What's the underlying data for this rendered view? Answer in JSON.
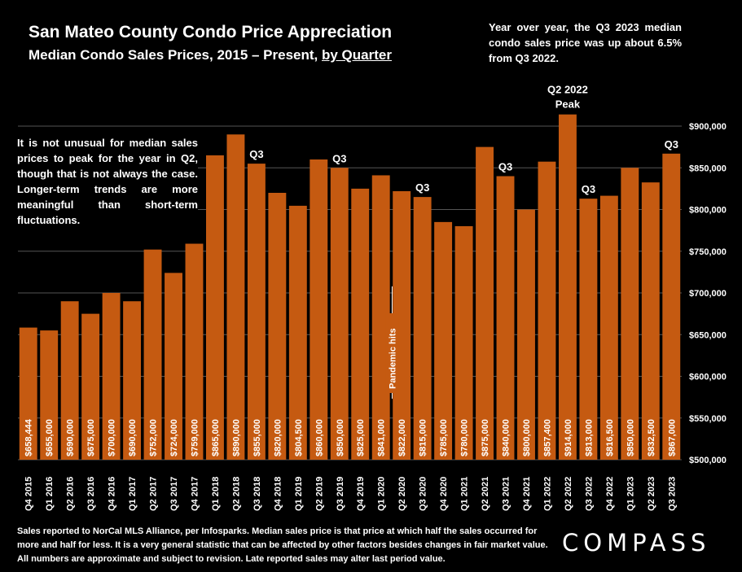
{
  "title": "San Mateo County Condo Price Appreciation",
  "subtitle_main": "Median Condo Sales Prices, 2015 – Present, ",
  "subtitle_link": "by Quarter",
  "note_top": "Year over year, the Q3 2023 median condo sales price was up about 6.5% from Q3 2022.",
  "note_left": "It is not unusual for median sales prices to peak for the year in Q2, though that is not always the case. Longer-term trends are more meaningful than short-term fluctuations.",
  "footnote": "Sales reported to NorCal MLS Alliance, per Infosparks. Median sales price is that price at which half the sales occurred for more and half for less. It is a very general statistic that can be affected by other factors besides changes in fair market value. All numbers are approximate and subject to revision. Late reported sales may alter last period value.",
  "logo": "COMPASS",
  "colors": {
    "bar": "#C55A11",
    "background": "#000000",
    "text": "#FFFFFF",
    "grid": "#555555"
  },
  "chart_data": {
    "type": "bar",
    "categories": [
      "Q4 2015",
      "Q1 2016",
      "Q2 2016",
      "Q3 2016",
      "Q4 2016",
      "Q1 2017",
      "Q2 2017",
      "Q3 2017",
      "Q4 2017",
      "Q1 2018",
      "Q2 2018",
      "Q3 2018",
      "Q4 2018",
      "Q1 2019",
      "Q2 2019",
      "Q3 2019",
      "Q4 2019",
      "Q1 2020",
      "Q2 2020",
      "Q3 2020",
      "Q4 2020",
      "Q1 2021",
      "Q2 2021",
      "Q3 2021",
      "Q4 2021",
      "Q1 2022",
      "Q2 2022",
      "Q3 2022",
      "Q4 2022",
      "Q1 2023",
      "Q2 2023",
      "Q3 2023"
    ],
    "values": [
      658444,
      655000,
      690000,
      675000,
      700000,
      690000,
      752000,
      724000,
      759000,
      865000,
      890000,
      855000,
      820000,
      804500,
      860000,
      850000,
      825000,
      841000,
      822000,
      815000,
      785000,
      780000,
      875000,
      840000,
      800000,
      857400,
      914000,
      813000,
      816500,
      850000,
      832500,
      867000
    ],
    "value_labels": [
      "$658,444",
      "$655,000",
      "$690,000",
      "$675,000",
      "$700,000",
      "$690,000",
      "$752,000",
      "$724,000",
      "$759,000",
      "$865,000",
      "$890,000",
      "$855,000",
      "$820,000",
      "$804,500",
      "$860,000",
      "$850,000",
      "$825,000",
      "$841,000",
      "$822,000",
      "$815,000",
      "$785,000",
      "$780,000",
      "$875,000",
      "$840,000",
      "$800,000",
      "$857,400",
      "$914,000",
      "$813,000",
      "$816,500",
      "$850,000",
      "$832,500",
      "$867,000"
    ],
    "ylim": [
      500000,
      900000
    ],
    "y_ticks": [
      500000,
      550000,
      600000,
      650000,
      700000,
      750000,
      800000,
      850000,
      900000
    ],
    "y_tick_labels": [
      "$500,000",
      "$550,000",
      "$600,000",
      "$650,000",
      "$700,000",
      "$750,000",
      "$800,000",
      "$850,000",
      "$900,000"
    ],
    "grid": true,
    "y_axis_position": "right",
    "annotations": [
      {
        "category": "Q3 2018",
        "text": "Q3"
      },
      {
        "category": "Q3 2019",
        "text": "Q3"
      },
      {
        "category": "Q3 2020",
        "text": "Q3"
      },
      {
        "category": "Q3 2021",
        "text": "Q3"
      },
      {
        "category": "Q3 2022",
        "text": "Q3"
      },
      {
        "category": "Q3 2023",
        "text": "Q3"
      },
      {
        "category": "Q2 2022",
        "text": "Q2 2022"
      },
      {
        "category": "Q2 2022",
        "text": "Peak"
      }
    ],
    "callout": {
      "category": "Q2 2020",
      "text": "Pandemic hits"
    }
  }
}
